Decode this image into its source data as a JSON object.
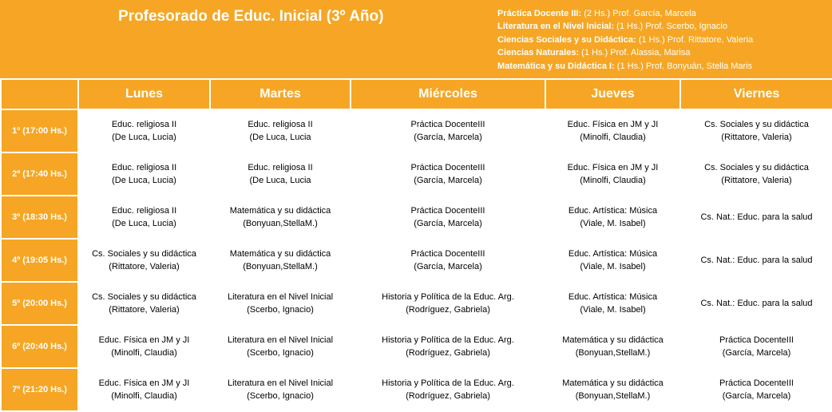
{
  "header": {
    "title": "Profesorado  de Educ. Inicial (3º Año)",
    "teachers": [
      {
        "subject": "Práctica Docente III:",
        "detail": " (2 Hs.) Prof. García, Marcela"
      },
      {
        "subject": "Literatura en el Nivel Inicial:",
        "detail": " (1 Hs.) Prof. Scerbo, Ignacio"
      },
      {
        "subject": "Ciencias Sociales  y su Didáctica:",
        "detail": "  (1 Hs.) Prof. Rittatore, Valeria"
      },
      {
        "subject": "Ciencias Naturales:",
        "detail": " (1 Hs.) Prof. Alassia,  Marisa"
      },
      {
        "subject": "Matemática y su Didáctica  I:",
        "detail": " (1 Hs.) Prof. Bonyuán, Stella Maris"
      }
    ]
  },
  "days": [
    "Lunes",
    "Martes",
    "Miércoles",
    "Jueves",
    "Viernes"
  ],
  "rows": [
    {
      "slot": "1º (17:00 Hs.)",
      "cells": [
        "Educ. religiosa II\n(De Luca, Lucia)",
        "Educ. religiosa II\n(De Luca, Lucia",
        "Práctica DocenteIII\n(García, Marcela)",
        "Educ. Física en JM y JI\n(Minolfi, Claudia)",
        "Cs. Sociales y su didáctica\n(Rittatore, Valeria)"
      ]
    },
    {
      "slot": "2º (17:40 Hs.)",
      "cells": [
        "Educ. religiosa II\n(De Luca, Lucia)",
        "Educ. religiosa II\n(De Luca, Lucia",
        "Práctica DocenteIII\n(García, Marcela)",
        "Educ. Física en JM y JI\n(Minolfi, Claudia)",
        "Cs. Sociales y su didáctica\n(Rittatore, Valeria)"
      ]
    },
    {
      "slot": "3º (18:30 Hs.)",
      "cells": [
        "Educ. religiosa II\n(De Luca, Lucia)",
        "Matemática  y su didáctica\n(Bonyuan,StellaM.)",
        "Práctica DocenteIII\n(García, Marcela)",
        "Educ. Artística: Música\n(Viale, M. Isabel)",
        "Cs. Nat.:  Educ. para la salud"
      ]
    },
    {
      "slot": "4º (19:05 Hs.)",
      "cells": [
        "Cs. Sociales y su didáctica\n(Rittatore, Valeria)",
        "Matemática  y su didáctica\n(Bonyuan,StellaM.)",
        "Práctica DocenteIII\n(García, Marcela)",
        "Educ. Artística: Música\n(Viale, M. Isabel)",
        "Cs. Nat.:  Educ. para la salud"
      ]
    },
    {
      "slot": "5º (20:00 Hs.)",
      "cells": [
        "Cs. Sociales y su didáctica\n(Rittatore, Valeria)",
        "Literatura en el Nivel Inicial\n(Scerbo, Ignacio)",
        "Historia y Política de la Educ. Arg.\n(Rodríguez, Gabriela)",
        "Educ. Artística: Música\n(Viale, M. Isabel)",
        "Cs. Nat.:  Educ. para la salud"
      ]
    },
    {
      "slot": "6º (20:40 Hs.)",
      "cells": [
        "Educ. Física en JM y JI\n(Minolfi, Claudia)",
        "Literatura en el Nivel Inicial\n(Scerbo, Ignacio)",
        "Historia y Política de la Educ. Arg.\n(Rodríguez, Gabriela)",
        "Matemática  y su didáctica\n(Bonyuan,StellaM.)",
        "Práctica DocenteIII\n(García, Marcela)"
      ]
    },
    {
      "slot": "7º (21:20 Hs.)",
      "cells": [
        "Educ. Física en JM y JI\n(Minolfi, Claudia)",
        "Literatura en el Nivel Inicial\n(Scerbo, Ignacio)",
        "Historia y Política de la Educ. Arg.\n(Rodríguez, Gabriela)",
        "Matemática  y su didáctica\n(Bonyuan,StellaM.)",
        "Práctica DocenteIII\n(García, Marcela)"
      ]
    }
  ]
}
